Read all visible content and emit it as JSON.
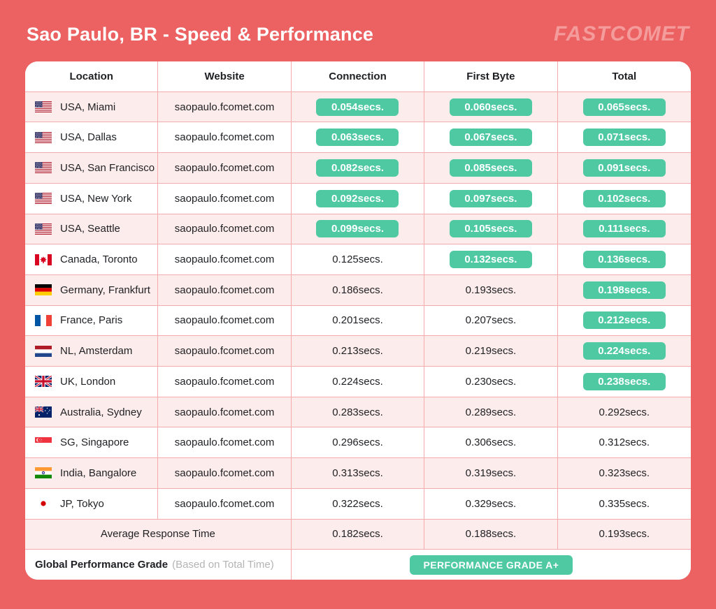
{
  "page": {
    "title": "Sao Paulo, BR - Speed & Performance",
    "brand": "FASTCOMET"
  },
  "colors": {
    "background": "#EC6262",
    "badge_green": "#4FC9A2",
    "row_pink": "#FDECEC",
    "table_line": "#F5ABAB"
  },
  "table": {
    "headers": [
      "Location",
      "Website",
      "Connection",
      "First Byte",
      "Total"
    ],
    "rows": [
      {
        "flag": "us",
        "location": "USA, Miami",
        "website": "saopaulo.fcomet.com",
        "connection": {
          "text": "0.054secs.",
          "badge": true
        },
        "first_byte": {
          "text": "0.060secs.",
          "badge": true
        },
        "total": {
          "text": "0.065secs.",
          "badge": true
        }
      },
      {
        "flag": "us",
        "location": "USA, Dallas",
        "website": "saopaulo.fcomet.com",
        "connection": {
          "text": "0.063secs.",
          "badge": true
        },
        "first_byte": {
          "text": "0.067secs.",
          "badge": true
        },
        "total": {
          "text": "0.071secs.",
          "badge": true
        }
      },
      {
        "flag": "us",
        "location": "USA, San Francisco",
        "website": "saopaulo.fcomet.com",
        "connection": {
          "text": "0.082secs.",
          "badge": true
        },
        "first_byte": {
          "text": "0.085secs.",
          "badge": true
        },
        "total": {
          "text": "0.091secs.",
          "badge": true
        }
      },
      {
        "flag": "us",
        "location": "USA, New York",
        "website": "saopaulo.fcomet.com",
        "connection": {
          "text": "0.092secs.",
          "badge": true
        },
        "first_byte": {
          "text": "0.097secs.",
          "badge": true
        },
        "total": {
          "text": "0.102secs.",
          "badge": true
        }
      },
      {
        "flag": "us",
        "location": "USA, Seattle",
        "website": "saopaulo.fcomet.com",
        "connection": {
          "text": "0.099secs.",
          "badge": true
        },
        "first_byte": {
          "text": "0.105secs.",
          "badge": true
        },
        "total": {
          "text": "0.111secs.",
          "badge": true
        }
      },
      {
        "flag": "ca",
        "location": "Canada, Toronto",
        "website": "saopaulo.fcomet.com",
        "connection": {
          "text": "0.125secs.",
          "badge": false
        },
        "first_byte": {
          "text": "0.132secs.",
          "badge": true
        },
        "total": {
          "text": "0.136secs.",
          "badge": true
        }
      },
      {
        "flag": "de",
        "location": "Germany, Frankfurt",
        "website": "saopaulo.fcomet.com",
        "connection": {
          "text": "0.186secs.",
          "badge": false
        },
        "first_byte": {
          "text": "0.193secs.",
          "badge": false
        },
        "total": {
          "text": "0.198secs.",
          "badge": true
        }
      },
      {
        "flag": "fr",
        "location": "France, Paris",
        "website": "saopaulo.fcomet.com",
        "connection": {
          "text": "0.201secs.",
          "badge": false
        },
        "first_byte": {
          "text": "0.207secs.",
          "badge": false
        },
        "total": {
          "text": "0.212secs.",
          "badge": true
        }
      },
      {
        "flag": "nl",
        "location": "NL, Amsterdam",
        "website": "saopaulo.fcomet.com",
        "connection": {
          "text": "0.213secs.",
          "badge": false
        },
        "first_byte": {
          "text": "0.219secs.",
          "badge": false
        },
        "total": {
          "text": "0.224secs.",
          "badge": true
        }
      },
      {
        "flag": "gb",
        "location": "UK, London",
        "website": "saopaulo.fcomet.com",
        "connection": {
          "text": "0.224secs.",
          "badge": false
        },
        "first_byte": {
          "text": "0.230secs.",
          "badge": false
        },
        "total": {
          "text": "0.238secs.",
          "badge": true
        }
      },
      {
        "flag": "au",
        "location": "Australia, Sydney",
        "website": "saopaulo.fcomet.com",
        "connection": {
          "text": "0.283secs.",
          "badge": false
        },
        "first_byte": {
          "text": "0.289secs.",
          "badge": false
        },
        "total": {
          "text": "0.292secs.",
          "badge": false
        }
      },
      {
        "flag": "sg",
        "location": "SG, Singapore",
        "website": "saopaulo.fcomet.com",
        "connection": {
          "text": "0.296secs.",
          "badge": false
        },
        "first_byte": {
          "text": "0.306secs.",
          "badge": false
        },
        "total": {
          "text": "0.312secs.",
          "badge": false
        }
      },
      {
        "flag": "in",
        "location": "India, Bangalore",
        "website": "saopaulo.fcomet.com",
        "connection": {
          "text": "0.313secs.",
          "badge": false
        },
        "first_byte": {
          "text": "0.319secs.",
          "badge": false
        },
        "total": {
          "text": "0.323secs.",
          "badge": false
        }
      },
      {
        "flag": "jp",
        "location": "JP, Tokyo",
        "website": "saopaulo.fcomet.com",
        "connection": {
          "text": "0.322secs.",
          "badge": false
        },
        "first_byte": {
          "text": "0.329secs.",
          "badge": false
        },
        "total": {
          "text": "0.335secs.",
          "badge": false
        }
      }
    ],
    "average_row": {
      "label": "Average Response Time",
      "connection": "0.182secs.",
      "first_byte": "0.188secs.",
      "total": "0.193secs."
    },
    "grade_row": {
      "label": "Global Performance Grade",
      "sublabel": "(Based on Total Time)",
      "badge": "PERFORMANCE GRADE A+"
    }
  },
  "chart_data": {
    "type": "table",
    "title": "Sao Paulo, BR - Speed & Performance",
    "columns": [
      "Location",
      "Website",
      "Connection",
      "First Byte",
      "Total"
    ],
    "unit": "seconds",
    "rows": [
      {
        "location": "USA, Miami",
        "website": "saopaulo.fcomet.com",
        "connection": 0.054,
        "first_byte": 0.06,
        "total": 0.065
      },
      {
        "location": "USA, Dallas",
        "website": "saopaulo.fcomet.com",
        "connection": 0.063,
        "first_byte": 0.067,
        "total": 0.071
      },
      {
        "location": "USA, San Francisco",
        "website": "saopaulo.fcomet.com",
        "connection": 0.082,
        "first_byte": 0.085,
        "total": 0.091
      },
      {
        "location": "USA, New York",
        "website": "saopaulo.fcomet.com",
        "connection": 0.092,
        "first_byte": 0.097,
        "total": 0.102
      },
      {
        "location": "USA, Seattle",
        "website": "saopaulo.fcomet.com",
        "connection": 0.099,
        "first_byte": 0.105,
        "total": 0.111
      },
      {
        "location": "Canada, Toronto",
        "website": "saopaulo.fcomet.com",
        "connection": 0.125,
        "first_byte": 0.132,
        "total": 0.136
      },
      {
        "location": "Germany, Frankfurt",
        "website": "saopaulo.fcomet.com",
        "connection": 0.186,
        "first_byte": 0.193,
        "total": 0.198
      },
      {
        "location": "France, Paris",
        "website": "saopaulo.fcomet.com",
        "connection": 0.201,
        "first_byte": 0.207,
        "total": 0.212
      },
      {
        "location": "NL, Amsterdam",
        "website": "saopaulo.fcomet.com",
        "connection": 0.213,
        "first_byte": 0.219,
        "total": 0.224
      },
      {
        "location": "UK, London",
        "website": "saopaulo.fcomet.com",
        "connection": 0.224,
        "first_byte": 0.23,
        "total": 0.238
      },
      {
        "location": "Australia, Sydney",
        "website": "saopaulo.fcomet.com",
        "connection": 0.283,
        "first_byte": 0.289,
        "total": 0.292
      },
      {
        "location": "SG, Singapore",
        "website": "saopaulo.fcomet.com",
        "connection": 0.296,
        "first_byte": 0.306,
        "total": 0.312
      },
      {
        "location": "India, Bangalore",
        "website": "saopaulo.fcomet.com",
        "connection": 0.313,
        "first_byte": 0.319,
        "total": 0.323
      },
      {
        "location": "JP, Tokyo",
        "website": "saopaulo.fcomet.com",
        "connection": 0.322,
        "first_byte": 0.329,
        "total": 0.335
      }
    ],
    "average": {
      "connection": 0.182,
      "first_byte": 0.188,
      "total": 0.193
    },
    "global_performance_grade": "A+"
  }
}
